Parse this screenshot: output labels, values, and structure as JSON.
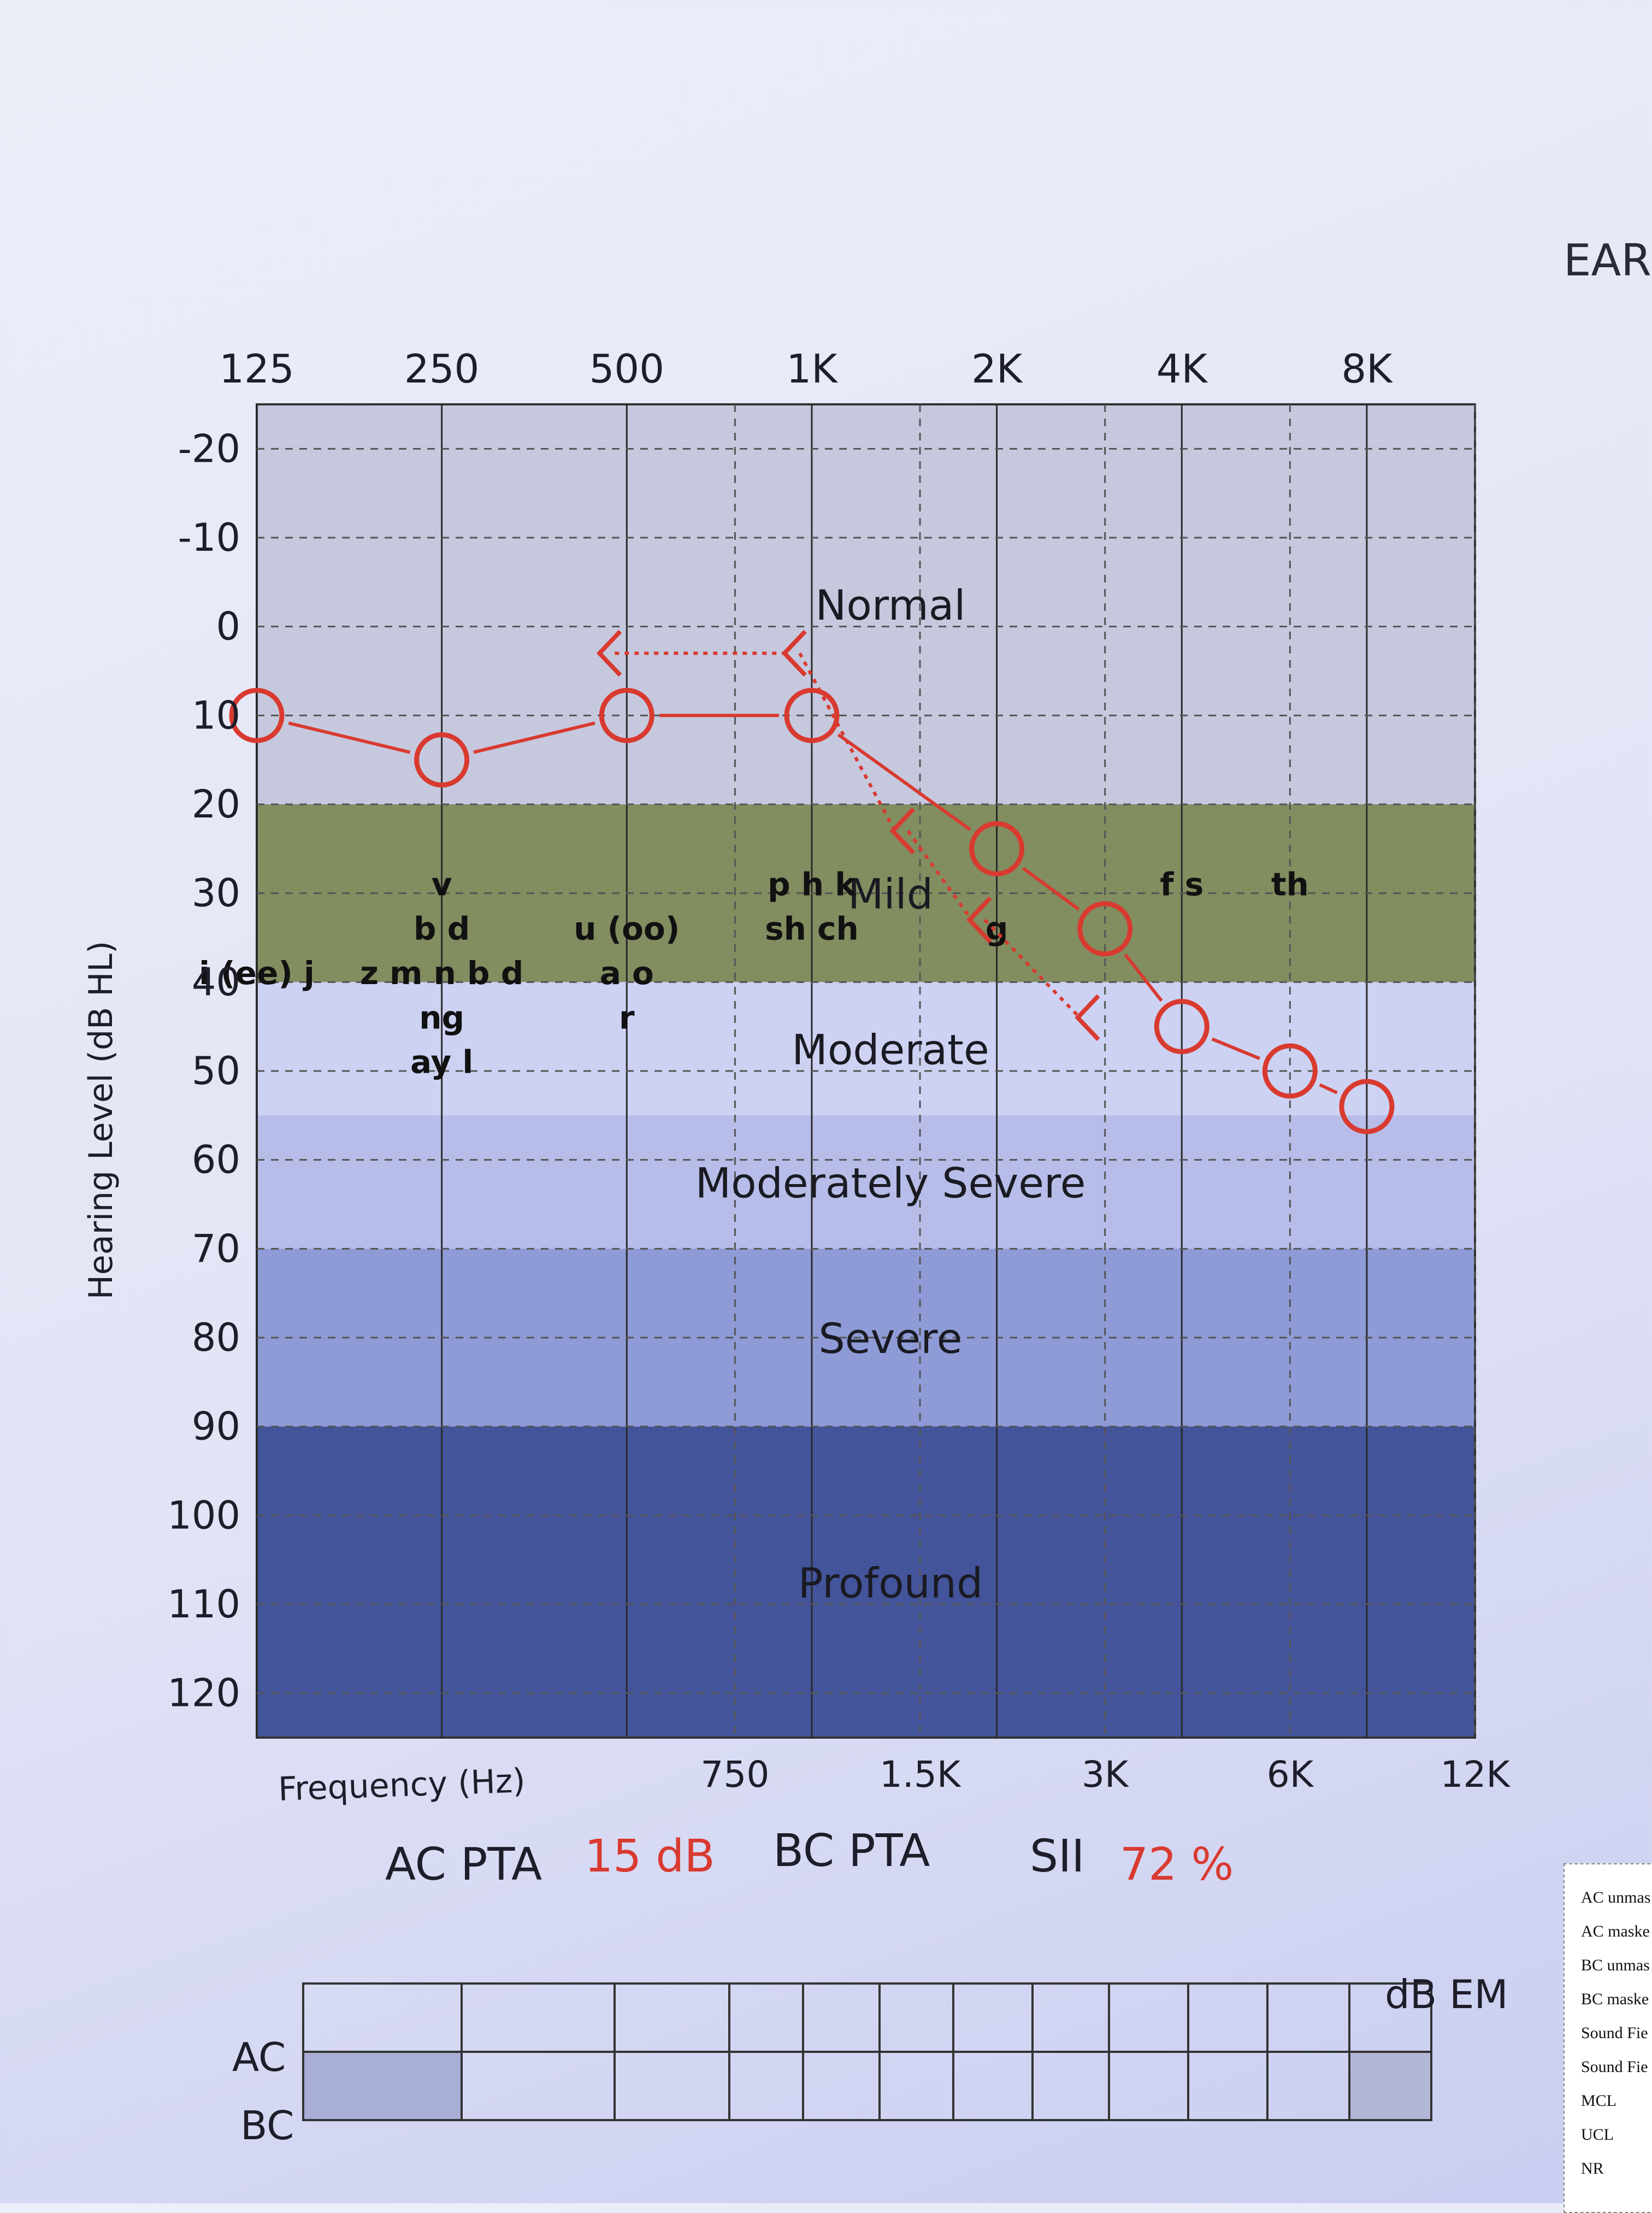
{
  "page": {
    "ear_label": "EAR"
  },
  "chart_data": {
    "type": "line",
    "title": "",
    "xlabel": "Frequency (Hz)",
    "ylabel": "Hearing Level (dB HL)",
    "x_scale": "log2",
    "xlim": [
      125,
      12000
    ],
    "ylim": [
      -25,
      125
    ],
    "y_inverted": true,
    "grid": true,
    "octave_ticks": [
      "125",
      "250",
      "500",
      "1K",
      "2K",
      "4K",
      "8K"
    ],
    "octave_tick_values": [
      125,
      250,
      500,
      1000,
      2000,
      4000,
      8000
    ],
    "interoctave_ticks": [
      "750",
      "1.5K",
      "3K",
      "6K",
      "12K"
    ],
    "interoctave_tick_values": [
      750,
      1500,
      3000,
      6000,
      12000
    ],
    "y_ticks": [
      -20,
      -10,
      0,
      10,
      20,
      30,
      40,
      50,
      60,
      70,
      80,
      90,
      100,
      110,
      120
    ],
    "bands": [
      {
        "label": "Normal",
        "from": -25,
        "to": 20,
        "color": "#c6c9de"
      },
      {
        "label": "Mild",
        "from": 20,
        "to": 40,
        "color": "#828d60"
      },
      {
        "label": "Moderate",
        "from": 40,
        "to": 55,
        "color": "#cdd2f3"
      },
      {
        "label": "Moderately Severe",
        "from": 55,
        "to": 70,
        "color": "#b7bde8"
      },
      {
        "label": "Severe",
        "from": 70,
        "to": 90,
        "color": "#8e9bd6"
      },
      {
        "label": "Profound",
        "from": 90,
        "to": 125,
        "color": "#43549a"
      }
    ],
    "series": [
      {
        "marker": "circle",
        "color": "#d93a30",
        "x": [
          125,
          250,
          500,
          1000,
          2000,
          3000,
          4000,
          6000,
          8000
        ],
        "y": [
          10,
          15,
          10,
          10,
          25,
          34,
          45,
          50,
          54
        ]
      },
      {
        "marker": "bracket",
        "color": "#d93a30",
        "x": [
          500,
          1000,
          1500,
          2000,
          3000
        ],
        "y": [
          3,
          3,
          23,
          33,
          44
        ]
      }
    ],
    "speech_sounds": [
      {
        "text": "v",
        "x": 250,
        "y": 29
      },
      {
        "text": "b d",
        "x": 250,
        "y": 34
      },
      {
        "text": "i (ee) j",
        "x": 125,
        "y": 39
      },
      {
        "text": "z m n b d",
        "x": 250,
        "y": 39
      },
      {
        "text": "ng",
        "x": 250,
        "y": 44
      },
      {
        "text": "ay l",
        "x": 250,
        "y": 49
      },
      {
        "text": "u (oo)",
        "x": 500,
        "y": 34
      },
      {
        "text": "a o",
        "x": 500,
        "y": 39
      },
      {
        "text": "r",
        "x": 500,
        "y": 44
      },
      {
        "text": "p h k",
        "x": 1000,
        "y": 29
      },
      {
        "text": "sh ch",
        "x": 1000,
        "y": 34
      },
      {
        "text": "g",
        "x": 2000,
        "y": 34
      },
      {
        "text": "f s",
        "x": 4000,
        "y": 29
      },
      {
        "text": "th",
        "x": 6000,
        "y": 29
      }
    ]
  },
  "summary": {
    "ac_pta_label": "AC PTA",
    "ac_pta_value": "15 dB",
    "bc_pta_label": "BC PTA",
    "sii_label": "SII",
    "sii_value": "72 %",
    "accent_color": "#d93a30"
  },
  "masking_table": {
    "row_ac": "AC",
    "row_bc": "BC",
    "unit": "dB EM"
  },
  "legend": {
    "items": [
      "AC unmas",
      "AC maske",
      "BC unmas",
      "BC maske",
      "Sound Fie",
      "Sound Fie",
      "MCL",
      "UCL",
      "NR"
    ]
  }
}
